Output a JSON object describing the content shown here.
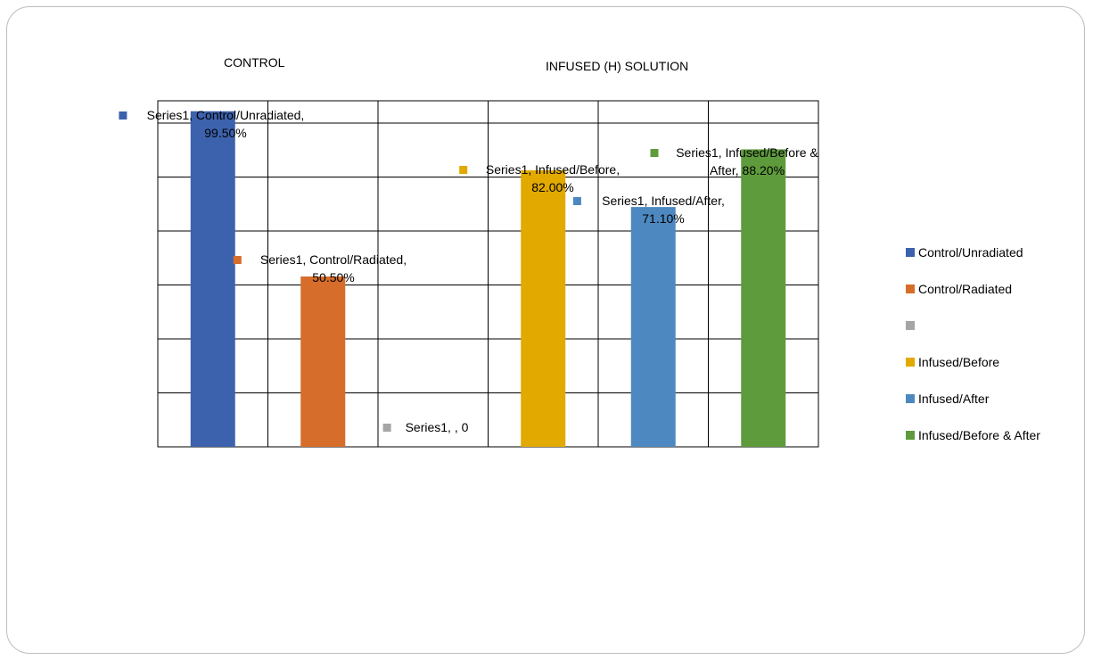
{
  "group_titles": {
    "control": "CONTROL",
    "infused": "INFUSED (H) SOLUTION"
  },
  "chart_data": {
    "type": "bar",
    "series_name": "Series1",
    "categories": [
      "Control/Unradiated",
      "Control/Radiated",
      "",
      "Infused/Before",
      "Infused/After",
      "Infused/Before & After"
    ],
    "values": [
      99.5,
      50.5,
      0,
      82.0,
      71.1,
      88.2
    ],
    "colors": [
      "#3c62ad",
      "#d66d2b",
      "#a5a5a5",
      "#e2a900",
      "#4e88c0",
      "#5e9b3c"
    ],
    "data_labels": [
      [
        "Series1, Control/Unradiated,",
        "99.50%"
      ],
      [
        "Series1, Control/Radiated,",
        "50.50%"
      ],
      [
        "Series1, , 0"
      ],
      [
        "Series1, Infused/Before,",
        "82.00%"
      ],
      [
        "Series1, Infused/After,",
        "71.10%"
      ],
      [
        "Series1, Infused/Before &",
        "After, 88.20%"
      ]
    ],
    "ylim": [
      0,
      100
    ],
    "grid": true,
    "legend_position": "right"
  }
}
